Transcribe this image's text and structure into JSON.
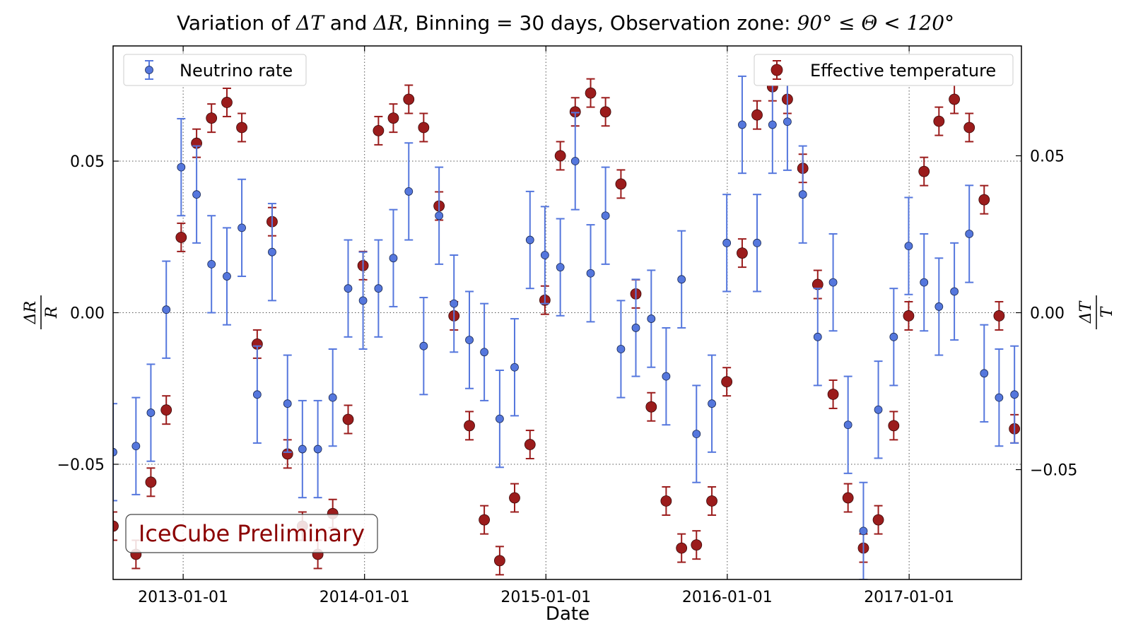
{
  "chart_data": {
    "type": "scatter",
    "title": {
      "prefix": "Variation of ",
      "dT": "ΔT",
      "and": " and ",
      "dR": "ΔR",
      "middle": ", Binning = 30 days, Observation zone: ",
      "zone": "90° ≤ Θ < 120°"
    },
    "xlabel": "Date",
    "ylabel_left": {
      "num": "ΔR",
      "den": "R"
    },
    "ylabel_right": {
      "num": "ΔT",
      "den": "T"
    },
    "x_range_days_since_2012_01_01": [
      225,
      2053
    ],
    "ylim_left": [
      -0.088,
      0.088
    ],
    "ylim_right": [
      -0.085,
      0.085
    ],
    "x_ticks": [
      {
        "day": 366,
        "label": "2013-01-01"
      },
      {
        "day": 731,
        "label": "2014-01-01"
      },
      {
        "day": 1096,
        "label": "2015-01-01"
      },
      {
        "day": 1461,
        "label": "2016-01-01"
      },
      {
        "day": 1827,
        "label": "2017-01-01"
      }
    ],
    "y_ticks_left": [
      {
        "value": 0.05,
        "label": "0.05"
      },
      {
        "value": 0.0,
        "label": "0.00"
      },
      {
        "value": -0.05,
        "label": "−0.05"
      }
    ],
    "y_ticks_right": [
      {
        "value": 0.05,
        "label": "0.05"
      },
      {
        "value": 0.0,
        "label": "0.00"
      },
      {
        "value": -0.05,
        "label": "−0.05"
      }
    ],
    "grid": true,
    "series": [
      {
        "name": "Neutrino rate",
        "axis": "left",
        "color": "#5577dd",
        "legend_position": "top-left",
        "error": 0.016,
        "x": [
          225,
          271,
          301,
          332,
          362,
          393,
          423,
          454,
          484,
          515,
          545,
          576,
          606,
          637,
          667,
          698,
          728,
          759,
          789,
          820,
          850,
          881,
          911,
          942,
          972,
          1003,
          1033,
          1064,
          1094,
          1125,
          1155,
          1186,
          1216,
          1247,
          1277,
          1308,
          1338,
          1369,
          1399,
          1430,
          1460,
          1491,
          1521,
          1552,
          1582,
          1613,
          1643,
          1674,
          1704,
          1735,
          1765,
          1796,
          1826,
          1857,
          1887,
          1918,
          1948
        ],
        "values": [
          -0.046,
          -0.044,
          -0.033,
          0.001,
          0.048,
          0.039,
          0.016,
          0.012,
          0.028,
          -0.027,
          0.02,
          -0.03,
          -0.045,
          -0.045,
          -0.028,
          0.008,
          0.004,
          0.008,
          0.018,
          0.04,
          -0.011,
          0.032,
          0.003,
          -0.009,
          -0.013,
          -0.035,
          -0.018,
          0.024,
          0.019,
          0.015,
          0.05,
          0.013,
          0.032,
          -0.012,
          -0.005,
          -0.002,
          -0.021,
          0.011,
          -0.04,
          -0.03,
          0.023,
          0.062,
          0.023,
          0.062,
          0.063,
          0.039,
          -0.008,
          0.01,
          -0.037,
          -0.072,
          -0.032,
          -0.008,
          0.022,
          0.01,
          0.002,
          0.007,
          0.026
        ]
      },
      {
        "name": "Neutrino rate",
        "axis": "left",
        "color": "#5577dd",
        "error": 0.016,
        "x": [
          1978,
          2008,
          2039
        ],
        "values": [
          -0.02,
          -0.028,
          -0.027
        ]
      },
      {
        "name": "Effective temperature",
        "axis": "right",
        "color": "#9b1c1c",
        "legend_position": "top-right",
        "error": 0.0045,
        "x": [
          225,
          271,
          301,
          332,
          362,
          393,
          423,
          454,
          484,
          515,
          545,
          576,
          606,
          637,
          667,
          698,
          728,
          759,
          789,
          820,
          850,
          881,
          911,
          942,
          972,
          1003,
          1033,
          1064,
          1094,
          1125,
          1155,
          1186,
          1216,
          1247,
          1277,
          1308,
          1338,
          1369,
          1399,
          1430,
          1460,
          1491,
          1521,
          1552,
          1582,
          1613,
          1643,
          1674,
          1704,
          1735,
          1765,
          1796,
          1826,
          1857,
          1887,
          1918,
          1948,
          1978,
          2008,
          2039
        ],
        "values": [
          -0.068,
          -0.077,
          -0.054,
          -0.031,
          0.024,
          0.054,
          0.062,
          0.067,
          0.059,
          -0.01,
          0.029,
          -0.045,
          -0.068,
          -0.077,
          -0.064,
          -0.034,
          0.015,
          0.058,
          0.062,
          0.068,
          0.059,
          0.034,
          -0.001,
          -0.036,
          -0.066,
          -0.079,
          -0.059,
          -0.042,
          0.004,
          0.05,
          0.064,
          0.07,
          0.064,
          0.041,
          0.006,
          -0.03,
          -0.06,
          -0.075,
          -0.074,
          -0.06,
          -0.022,
          0.019,
          0.063,
          0.072,
          0.068,
          0.046,
          0.009,
          -0.026,
          -0.059,
          -0.075,
          -0.066,
          -0.036,
          -0.001,
          0.045,
          0.061,
          0.068,
          0.059,
          0.036,
          -0.001,
          -0.037
        ]
      }
    ],
    "annotation": "IceCube Preliminary",
    "annotation_color": "#8b0000"
  }
}
